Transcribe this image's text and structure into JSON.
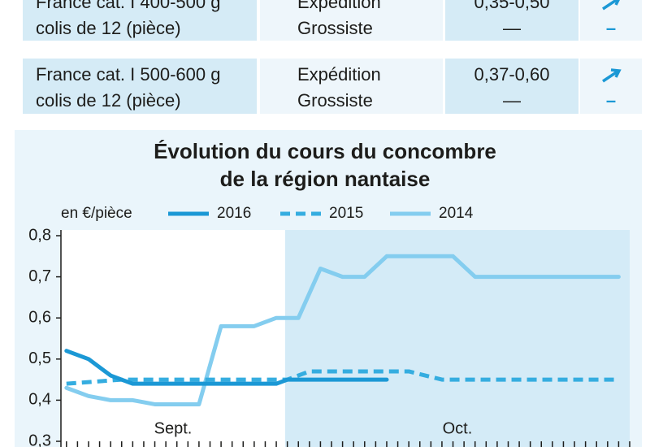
{
  "table": {
    "rows": [
      {
        "product": [
          "France cat. I 400-500 g",
          "colis de 12 (pièce)"
        ],
        "stage": [
          "Expédition",
          "Grossiste"
        ],
        "price": [
          "0,35-0,50",
          "—"
        ],
        "trend": "–"
      },
      {
        "product": [
          "France cat. I 500-600 g",
          "colis de 12 (pièce)"
        ],
        "stage": [
          "Expédition",
          "Grossiste"
        ],
        "price": [
          "0,37-0,60",
          "—"
        ],
        "trend": "–"
      }
    ]
  },
  "chart_data": {
    "type": "line",
    "title": [
      "Évolution du cours du concombre",
      "de la région nantaise"
    ],
    "unit_label": "en €/pièce",
    "series": [
      {
        "name": "2016",
        "color": "#1b98d5",
        "dashed": false,
        "x": [
          0,
          2,
          4,
          6,
          19,
          20,
          29
        ],
        "values": [
          0.52,
          0.5,
          0.46,
          0.44,
          0.44,
          0.45,
          0.45
        ]
      },
      {
        "name": "2015",
        "color": "#35ade0",
        "dashed": true,
        "x": [
          0,
          5,
          20,
          22,
          31,
          34,
          50
        ],
        "values": [
          0.44,
          0.45,
          0.45,
          0.47,
          0.47,
          0.45,
          0.45
        ]
      },
      {
        "name": "2014",
        "color": "#84cdef",
        "dashed": false,
        "x": [
          0,
          2,
          4,
          6,
          8,
          12,
          14,
          17,
          19,
          21,
          23,
          25,
          27,
          29,
          35,
          37,
          50
        ],
        "values": [
          0.43,
          0.41,
          0.4,
          0.4,
          0.39,
          0.39,
          0.58,
          0.58,
          0.6,
          0.6,
          0.72,
          0.7,
          0.7,
          0.75,
          0.75,
          0.7,
          0.7
        ]
      }
    ],
    "months": [
      {
        "label": "Sept.",
        "start": -0.5
      },
      {
        "label": "Oct.",
        "start": 19.8
      }
    ],
    "xlim": [
      -0.5,
      51
    ],
    "xticks": [
      0,
      1,
      2,
      3,
      4,
      5,
      6,
      7,
      8,
      9,
      10,
      11,
      12,
      13,
      14,
      15,
      16,
      17,
      18,
      19,
      20,
      21,
      22,
      23,
      24,
      25,
      26,
      27,
      28,
      29,
      30,
      31,
      32,
      33,
      34,
      35,
      36,
      37,
      38,
      39,
      40,
      41,
      42,
      43,
      44,
      45,
      46,
      47,
      48,
      49,
      50,
      51
    ],
    "ylim": [
      0.3,
      0.8
    ],
    "yticks": [
      {
        "value": 0.3,
        "label": "0,3"
      },
      {
        "value": 0.4,
        "label": "0,4"
      },
      {
        "value": 0.5,
        "label": "0,5"
      },
      {
        "value": 0.6,
        "label": "0,6"
      },
      {
        "value": 0.7,
        "label": "0,7"
      },
      {
        "value": 0.8,
        "label": "0,8"
      }
    ]
  }
}
